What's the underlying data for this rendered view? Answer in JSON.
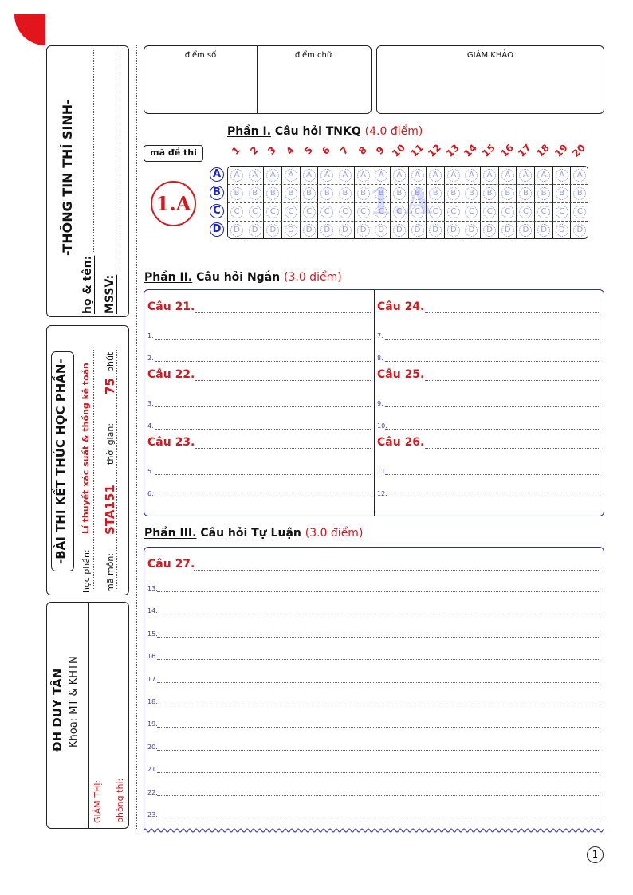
{
  "header": {
    "score_number_label": "điểm số",
    "score_text_label": "điểm chữ",
    "examiner_label": "GIÁM KHẢO"
  },
  "student_info": {
    "title": "-THÔNG TIN THÍ SINH-",
    "name_label": "họ & tên:",
    "id_label": "MSSV:"
  },
  "exam_info": {
    "title": "-BÀI THI KẾT THÚC HỌC PHẦN-",
    "course_label": "học phần:",
    "course_value": "Lí thuyết xác suất & thống kê toán",
    "code_label": "mã môn:",
    "code_value": "STA151",
    "time_label": "thời gian:",
    "time_value": "75",
    "time_unit": "phút"
  },
  "institution": {
    "name": "ĐH DUY TÂN",
    "faculty": "Khoa: MT & KHTN",
    "proctor_label": "GIÁM THỊ:",
    "room_label": "phòng thi:"
  },
  "part1": {
    "title_prefix": "Phần I.",
    "title": "Câu hỏi TNKQ",
    "points": "(4.0 điểm)",
    "exam_code_label": "mã đề thi",
    "exam_code": "1.A",
    "watermark": "1.A",
    "questions": [
      "1",
      "2",
      "3",
      "4",
      "5",
      "6",
      "7",
      "8",
      "9",
      "10",
      "11",
      "12",
      "13",
      "14",
      "15",
      "16",
      "17",
      "18",
      "19",
      "20"
    ],
    "options": [
      "A",
      "B",
      "C",
      "D"
    ]
  },
  "part2": {
    "title_prefix": "Phần II.",
    "title": "Câu hỏi Ngắn",
    "points": "(3.0 điểm)",
    "columns": [
      [
        {
          "q": "Câu 21.",
          "lines": [
            "1.",
            "2."
          ]
        },
        {
          "q": "Câu 22.",
          "lines": [
            "3.",
            "4."
          ]
        },
        {
          "q": "Câu 23.",
          "lines": [
            "5.",
            "6."
          ]
        }
      ],
      [
        {
          "q": "Câu 24.",
          "lines": [
            "7.",
            "8."
          ]
        },
        {
          "q": "Câu 25.",
          "lines": [
            "9.",
            "10."
          ]
        },
        {
          "q": "Câu 26.",
          "lines": [
            "11.",
            "12."
          ]
        }
      ]
    ]
  },
  "part3": {
    "title_prefix": "Phần III.",
    "title": "Câu hỏi Tự Luận",
    "points": "(3.0 điểm)",
    "question": "Câu 27.",
    "lines": [
      "13.",
      "14.",
      "15.",
      "16.",
      "17.",
      "18.",
      "19.",
      "20.",
      "21.",
      "22.",
      "23."
    ]
  },
  "page_number": "1",
  "colors": {
    "accent_red": "#d3181f",
    "answer_blue": "#2b2bb0",
    "bubble": "#9aa0d8"
  }
}
